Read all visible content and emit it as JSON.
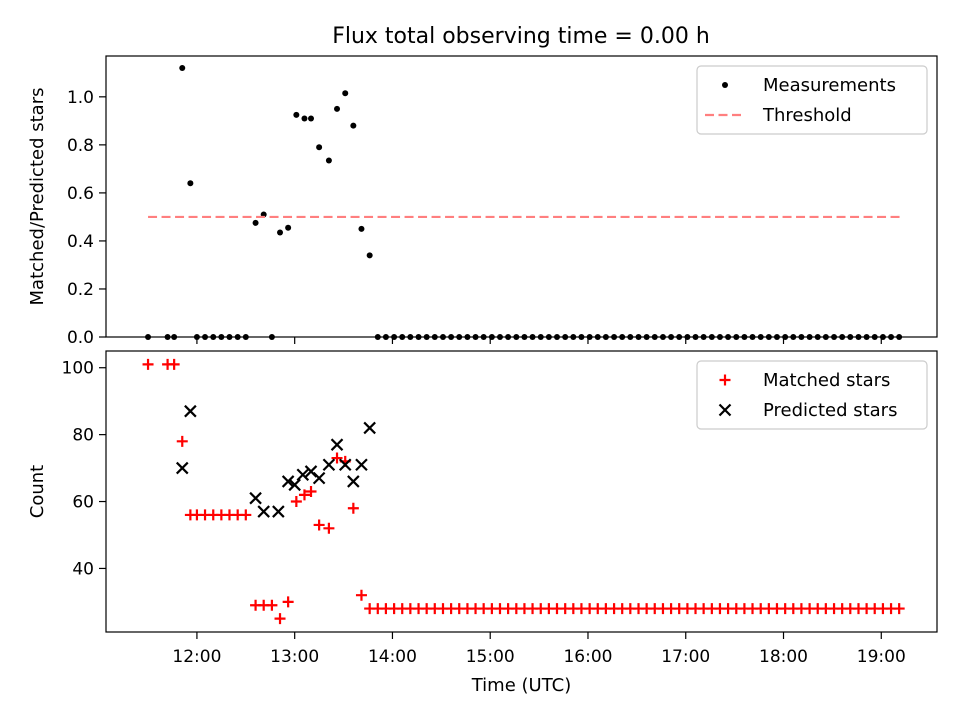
{
  "figure": {
    "title": "Flux total observing time = 0.00 h"
  },
  "chart_data": [
    {
      "type": "scatter",
      "ylabel": "Matched/Predicted stars",
      "xlabel": "",
      "xlim": [
        11.07,
        19.57
      ],
      "ylim": [
        0,
        1.17
      ],
      "yticks": [
        0.0,
        0.2,
        0.4,
        0.6,
        0.8,
        1.0
      ],
      "ytick_labels": [
        "0.0",
        "0.2",
        "0.4",
        "0.6",
        "0.8",
        "1.0"
      ],
      "xticks": [
        12,
        13,
        14,
        15,
        16,
        17,
        18,
        19
      ],
      "xtick_labels_shown": false,
      "grid": false,
      "legend": {
        "loc": "upper right",
        "labels": [
          "Measurements",
          "Threshold"
        ]
      },
      "series": [
        {
          "name": "Measurements",
          "kind": "points",
          "color": "#000000",
          "x": [
            11.5,
            11.7,
            11.767,
            11.85,
            11.933,
            12.0,
            12.083,
            12.167,
            12.25,
            12.333,
            12.417,
            12.5,
            12.6,
            12.683,
            12.767,
            12.85,
            12.933,
            13.017,
            13.1,
            13.167,
            13.25,
            13.35,
            13.433,
            13.517,
            13.6,
            13.683,
            13.767,
            13.85,
            13.933,
            14.017,
            14.1,
            14.183,
            14.267,
            14.35,
            14.433,
            14.517,
            14.6,
            14.683,
            14.767,
            14.85,
            14.933,
            15.017,
            15.1,
            15.183,
            15.267,
            15.35,
            15.433,
            15.517,
            15.6,
            15.683,
            15.767,
            15.85,
            15.933,
            16.017,
            16.1,
            16.183,
            16.267,
            16.35,
            16.433,
            16.517,
            16.6,
            16.683,
            16.767,
            16.85,
            16.933,
            17.017,
            17.1,
            17.183,
            17.267,
            17.35,
            17.433,
            17.517,
            17.6,
            17.683,
            17.767,
            17.85,
            17.933,
            18.017,
            18.1,
            18.183,
            18.267,
            18.35,
            18.433,
            18.517,
            18.6,
            18.683,
            18.767,
            18.85,
            18.933,
            19.017,
            19.1,
            19.183
          ],
          "y": [
            0,
            0,
            0,
            1.12,
            0.64,
            0,
            0,
            0,
            0,
            0,
            0,
            0,
            0.475,
            0.51,
            0,
            0.435,
            0.455,
            0.925,
            0.91,
            0.91,
            0.79,
            0.735,
            0.95,
            1.015,
            0.88,
            0.45,
            0.34,
            0,
            0,
            0,
            0,
            0,
            0,
            0,
            0,
            0,
            0,
            0,
            0,
            0,
            0,
            0,
            0,
            0,
            0,
            0,
            0,
            0,
            0,
            0,
            0,
            0,
            0,
            0,
            0,
            0,
            0,
            0,
            0,
            0,
            0,
            0,
            0,
            0,
            0,
            0,
            0,
            0,
            0,
            0,
            0,
            0,
            0,
            0,
            0,
            0,
            0,
            0,
            0,
            0,
            0,
            0,
            0,
            0,
            0,
            0,
            0,
            0,
            0,
            0,
            0,
            0
          ]
        },
        {
          "name": "Threshold",
          "kind": "dashed-line",
          "color": "#ff7f7f",
          "x": [
            11.5,
            19.2
          ],
          "y": [
            0.5,
            0.5
          ]
        }
      ]
    },
    {
      "type": "scatter",
      "ylabel": "Count",
      "xlabel": "Time (UTC)",
      "xlim": [
        11.07,
        19.57
      ],
      "ylim": [
        21,
        105
      ],
      "yticks": [
        40,
        60,
        80,
        100
      ],
      "ytick_labels": [
        "40",
        "60",
        "80",
        "100"
      ],
      "xticks": [
        12,
        13,
        14,
        15,
        16,
        17,
        18,
        19
      ],
      "xtick_labels": [
        "12:00",
        "13:00",
        "14:00",
        "15:00",
        "16:00",
        "17:00",
        "18:00",
        "19:00"
      ],
      "grid": false,
      "legend": {
        "loc": "upper right",
        "labels": [
          "Matched stars",
          "Predicted stars"
        ]
      },
      "series": [
        {
          "name": "Matched stars",
          "marker": "plus",
          "color": "#ff0000",
          "x": [
            11.5,
            11.7,
            11.767,
            11.85,
            11.933,
            12.0,
            12.083,
            12.167,
            12.25,
            12.333,
            12.417,
            12.5,
            12.6,
            12.683,
            12.767,
            12.85,
            12.933,
            13.017,
            13.1,
            13.167,
            13.25,
            13.35,
            13.433,
            13.517,
            13.6,
            13.683,
            13.767,
            13.85,
            13.933,
            14.017,
            14.1,
            14.183,
            14.267,
            14.35,
            14.433,
            14.517,
            14.6,
            14.683,
            14.767,
            14.85,
            14.933,
            15.017,
            15.1,
            15.183,
            15.267,
            15.35,
            15.433,
            15.517,
            15.6,
            15.683,
            15.767,
            15.85,
            15.933,
            16.017,
            16.1,
            16.183,
            16.267,
            16.35,
            16.433,
            16.517,
            16.6,
            16.683,
            16.767,
            16.85,
            16.933,
            17.017,
            17.1,
            17.183,
            17.267,
            17.35,
            17.433,
            17.517,
            17.6,
            17.683,
            17.767,
            17.85,
            17.933,
            18.017,
            18.1,
            18.183,
            18.267,
            18.35,
            18.433,
            18.517,
            18.6,
            18.683,
            18.767,
            18.85,
            18.933,
            19.017,
            19.1,
            19.183
          ],
          "y": [
            101,
            101,
            101,
            78,
            56,
            56,
            56,
            56,
            56,
            56,
            56,
            56,
            29,
            29,
            29,
            25,
            30,
            60,
            62,
            63,
            53,
            52,
            73,
            72,
            58,
            32,
            28,
            28,
            28,
            28,
            28,
            28,
            28,
            28,
            28,
            28,
            28,
            28,
            28,
            28,
            28,
            28,
            28,
            28,
            28,
            28,
            28,
            28,
            28,
            28,
            28,
            28,
            28,
            28,
            28,
            28,
            28,
            28,
            28,
            28,
            28,
            28,
            28,
            28,
            28,
            28,
            28,
            28,
            28,
            28,
            28,
            28,
            28,
            28,
            28,
            28,
            28,
            28,
            28,
            28,
            28,
            28,
            28,
            28,
            28,
            28,
            28,
            28,
            28,
            28,
            28,
            28
          ]
        },
        {
          "name": "Predicted stars",
          "marker": "x",
          "color": "#000000",
          "x": [
            11.85,
            11.933,
            12.6,
            12.683,
            12.833,
            12.933,
            13.0,
            13.083,
            13.167,
            13.25,
            13.35,
            13.433,
            13.517,
            13.6,
            13.683,
            13.767
          ],
          "y": [
            70,
            87,
            61,
            57,
            57,
            66,
            65,
            68,
            69,
            67,
            71,
            77,
            71,
            66,
            71,
            82
          ]
        }
      ]
    }
  ]
}
